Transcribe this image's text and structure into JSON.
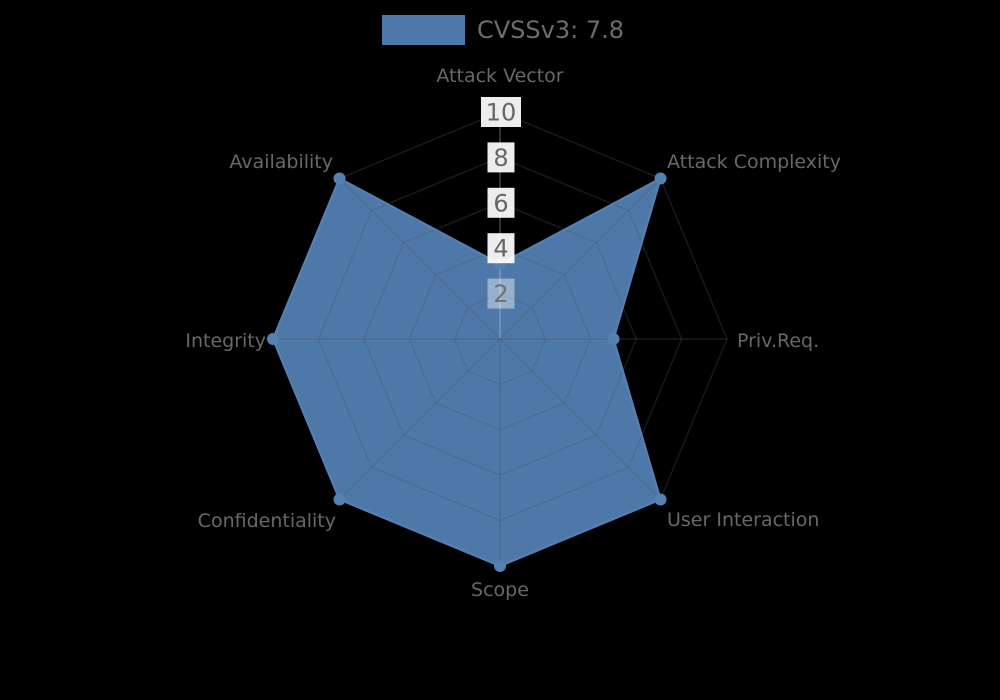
{
  "legend": {
    "label": "CVSSv3: 7.8",
    "swatch_color": "#4d78a8"
  },
  "chart_data": {
    "type": "radar",
    "title": "CVSSv3: 7.8",
    "categories": [
      "Attack Vector",
      "Attack Complexity",
      "Priv.Req.",
      "User Interaction",
      "Scope",
      "Confidentiality",
      "Integrity",
      "Availability"
    ],
    "series": [
      {
        "name": "CVSSv3: 7.8",
        "values": [
          3.3,
          10,
          5,
          10,
          10,
          10,
          10,
          10
        ]
      }
    ],
    "radial_ticks": [
      10,
      8,
      6,
      4,
      2
    ],
    "range": [
      0,
      10
    ],
    "grid": true,
    "grid_shape": "polygon",
    "legend_position": "top-center",
    "background_color": "#000000",
    "series_fill_color": "#4d78a8",
    "series_line_color": "#5580b2",
    "grid_color": "rgba(80,84,94,0.32)",
    "top_spoke_color": "rgba(235,240,248,0.30)",
    "label_color": "#686868",
    "tick_text_color": "#666666",
    "tick_box_color": "#ffffff"
  }
}
